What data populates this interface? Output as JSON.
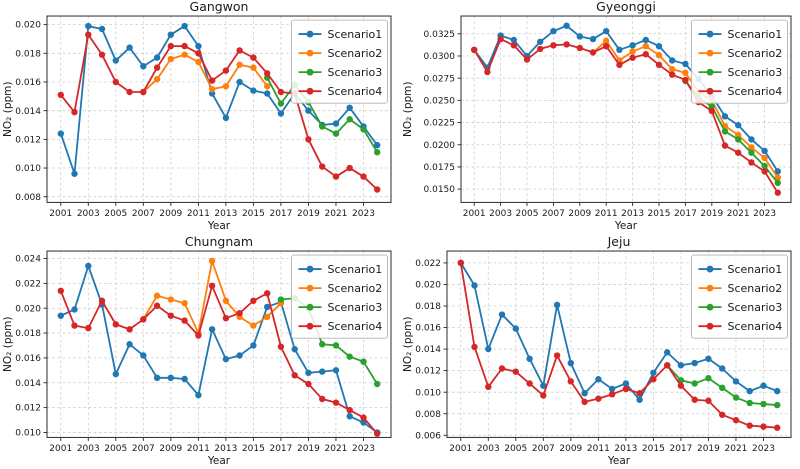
{
  "figure": {
    "background": "#ffffff",
    "xlabel": "Year",
    "ylabel": "NO₂ (ppm)",
    "legend_labels": [
      "Scenario1",
      "Scenario2",
      "Scenario3",
      "Scenario4"
    ],
    "series_colors": {
      "Scenario1": "#1f77b4",
      "Scenario2": "#ff7f0e",
      "Scenario3": "#2ca02c",
      "Scenario4": "#d62728"
    },
    "grid_color": "#cccccc",
    "axis_color": "#2b2b2b"
  },
  "chart_data": [
    {
      "type": "line",
      "title": "Gangwon",
      "xlabel": "Year",
      "ylabel": "NO₂ (ppm)",
      "grid": true,
      "legend_position": "upper right",
      "xlim": [
        2000,
        2025
      ],
      "ylim": [
        0.0076,
        0.0206
      ],
      "xticks": [
        2001,
        2003,
        2005,
        2007,
        2009,
        2011,
        2013,
        2015,
        2017,
        2019,
        2021,
        2023
      ],
      "yticks": [
        0.008,
        0.01,
        0.012,
        0.014,
        0.016,
        0.018,
        0.02
      ],
      "ytick_decimals": 3,
      "series": [
        {
          "name": "Scenario1",
          "color": "#1f77b4",
          "x_start": 2001,
          "values": [
            0.0124,
            0.0096,
            0.0199,
            0.0197,
            0.0175,
            0.0184,
            0.0171,
            0.0177,
            0.0193,
            0.0199,
            0.0185,
            0.0152,
            0.0135,
            0.016,
            0.0154,
            0.0152,
            0.0138,
            0.0152,
            0.014,
            0.013,
            0.0131,
            0.0142,
            0.0129,
            0.0116
          ]
        },
        {
          "name": "Scenario2",
          "color": "#ff7f0e",
          "x_start": 2007,
          "values": [
            0.0153,
            0.0162,
            0.0176,
            0.0179,
            0.0174,
            0.0155,
            0.0157,
            0.0172,
            0.017,
            0.0157
          ]
        },
        {
          "name": "Scenario3",
          "color": "#2ca02c",
          "x_start": 2016,
          "values": [
            0.0163,
            0.0145,
            0.0158,
            0.0146,
            0.0129,
            0.0124,
            0.0134,
            0.0127,
            0.0111
          ]
        },
        {
          "name": "Scenario4",
          "color": "#d62728",
          "x_start": 2001,
          "values": [
            0.0151,
            0.0139,
            0.0193,
            0.0179,
            0.016,
            0.0153,
            0.0153,
            0.017,
            0.0185,
            0.0185,
            0.018,
            0.0161,
            0.0168,
            0.0182,
            0.0177,
            0.0166,
            0.0153,
            0.0152,
            0.012,
            0.0101,
            0.0094,
            0.01,
            0.0094,
            0.0085
          ]
        }
      ]
    },
    {
      "type": "line",
      "title": "Gyeonggi",
      "xlabel": "Year",
      "ylabel": "NO₂ (ppm)",
      "grid": true,
      "legend_position": "upper right",
      "xlim": [
        2000,
        2025
      ],
      "ylim": [
        0.0135,
        0.0345
      ],
      "xticks": [
        2001,
        2003,
        2005,
        2007,
        2009,
        2011,
        2013,
        2015,
        2017,
        2019,
        2021,
        2023
      ],
      "yticks": [
        0.015,
        0.0175,
        0.02,
        0.0225,
        0.025,
        0.0275,
        0.03,
        0.0325
      ],
      "ytick_decimals": 4,
      "series": [
        {
          "name": "Scenario1",
          "color": "#1f77b4",
          "x_start": 2001,
          "values": [
            0.0307,
            0.0287,
            0.0323,
            0.0318,
            0.03,
            0.0316,
            0.0328,
            0.0334,
            0.0322,
            0.0319,
            0.0328,
            0.0307,
            0.0312,
            0.0318,
            0.0311,
            0.0295,
            0.0291,
            0.0274,
            0.0255,
            0.0232,
            0.0222,
            0.0206,
            0.0193,
            0.017
          ]
        },
        {
          "name": "Scenario2",
          "color": "#ff7f0e",
          "x_start": 2010,
          "values": [
            0.0304,
            0.0317,
            0.0295,
            0.0305,
            0.0311,
            0.0301,
            0.0285,
            0.0281,
            0.026,
            0.025,
            0.0221,
            0.0211,
            0.0197,
            0.0185,
            0.0163
          ]
        },
        {
          "name": "Scenario3",
          "color": "#2ca02c",
          "x_start": 2017,
          "values": [
            0.0272,
            0.0253,
            0.0243,
            0.0215,
            0.0206,
            0.0191,
            0.0176,
            0.0157
          ]
        },
        {
          "name": "Scenario4",
          "color": "#d62728",
          "x_start": 2001,
          "values": [
            0.0307,
            0.0282,
            0.0319,
            0.0312,
            0.0296,
            0.0308,
            0.0312,
            0.0313,
            0.0309,
            0.0304,
            0.0311,
            0.029,
            0.0298,
            0.0302,
            0.029,
            0.0279,
            0.0273,
            0.0248,
            0.0238,
            0.0199,
            0.0191,
            0.018,
            0.017,
            0.0146
          ]
        }
      ]
    },
    {
      "type": "line",
      "title": "Chungnam",
      "xlabel": "Year",
      "ylabel": "NO₂ (ppm)",
      "grid": true,
      "legend_position": "upper right",
      "xlim": [
        2000,
        2025
      ],
      "ylim": [
        0.0096,
        0.0246
      ],
      "xticks": [
        2001,
        2003,
        2005,
        2007,
        2009,
        2011,
        2013,
        2015,
        2017,
        2019,
        2021,
        2023
      ],
      "yticks": [
        0.01,
        0.012,
        0.014,
        0.016,
        0.018,
        0.02,
        0.022,
        0.024
      ],
      "ytick_decimals": 3,
      "series": [
        {
          "name": "Scenario1",
          "color": "#1f77b4",
          "x_start": 2001,
          "values": [
            0.0194,
            0.0199,
            0.0234,
            0.0203,
            0.0147,
            0.0171,
            0.0162,
            0.0144,
            0.0144,
            0.0143,
            0.013,
            0.0183,
            0.0159,
            0.0162,
            0.017,
            0.0201,
            0.0205,
            0.0167,
            0.0148,
            0.0149,
            0.015,
            0.0113,
            0.0108,
            0.01
          ]
        },
        {
          "name": "Scenario2",
          "color": "#ff7f0e",
          "x_start": 2007,
          "values": [
            0.0191,
            0.021,
            0.0207,
            0.0204,
            0.018,
            0.0238,
            0.0206,
            0.0193,
            0.0186,
            0.0193,
            0.0204
          ]
        },
        {
          "name": "Scenario3",
          "color": "#2ca02c",
          "x_start": 2017,
          "values": [
            0.0207,
            0.0208,
            0.02,
            0.0171,
            0.017,
            0.0161,
            0.0157,
            0.0139
          ]
        },
        {
          "name": "Scenario4",
          "color": "#d62728",
          "x_start": 2001,
          "values": [
            0.0214,
            0.0186,
            0.0184,
            0.0206,
            0.0187,
            0.0183,
            0.0191,
            0.0202,
            0.0194,
            0.019,
            0.0178,
            0.0218,
            0.0192,
            0.0196,
            0.0206,
            0.0212,
            0.0169,
            0.0146,
            0.0139,
            0.0127,
            0.0124,
            0.0118,
            0.0112,
            0.0099
          ]
        }
      ]
    },
    {
      "type": "line",
      "title": "Jeju",
      "xlabel": "Year",
      "ylabel": "NO₂ (ppm)",
      "grid": true,
      "legend_position": "upper right",
      "xlim": [
        2000,
        2025
      ],
      "ylim": [
        0.0058,
        0.0231
      ],
      "xticks": [
        2001,
        2003,
        2005,
        2007,
        2009,
        2011,
        2013,
        2015,
        2017,
        2019,
        2021,
        2023
      ],
      "yticks": [
        0.006,
        0.008,
        0.01,
        0.012,
        0.014,
        0.016,
        0.018,
        0.02,
        0.022
      ],
      "ytick_decimals": 3,
      "series": [
        {
          "name": "Scenario1",
          "color": "#1f77b4",
          "x_start": 2001,
          "values": [
            0.022,
            0.0199,
            0.014,
            0.0172,
            0.0159,
            0.0131,
            0.0106,
            0.0181,
            0.0127,
            0.0099,
            0.0112,
            0.0103,
            0.0108,
            0.0093,
            0.0118,
            0.0137,
            0.0125,
            0.0127,
            0.0131,
            0.0122,
            0.011,
            0.0101,
            0.0106,
            0.0101
          ]
        },
        {
          "name": "Scenario2",
          "color": "#ff7f0e",
          "x_start": null,
          "values": []
        },
        {
          "name": "Scenario3",
          "color": "#2ca02c",
          "x_start": 2016,
          "values": [
            0.0125,
            0.0111,
            0.0108,
            0.0113,
            0.0104,
            0.0095,
            0.009,
            0.0089,
            0.0088
          ]
        },
        {
          "name": "Scenario4",
          "color": "#d62728",
          "x_start": 2001,
          "values": [
            0.022,
            0.0142,
            0.0105,
            0.0122,
            0.0119,
            0.0108,
            0.0097,
            0.0134,
            0.011,
            0.0091,
            0.0094,
            0.0098,
            0.0103,
            0.0099,
            0.0112,
            0.0125,
            0.0106,
            0.0093,
            0.0092,
            0.0079,
            0.0074,
            0.0069,
            0.0068,
            0.0067
          ]
        }
      ]
    }
  ]
}
